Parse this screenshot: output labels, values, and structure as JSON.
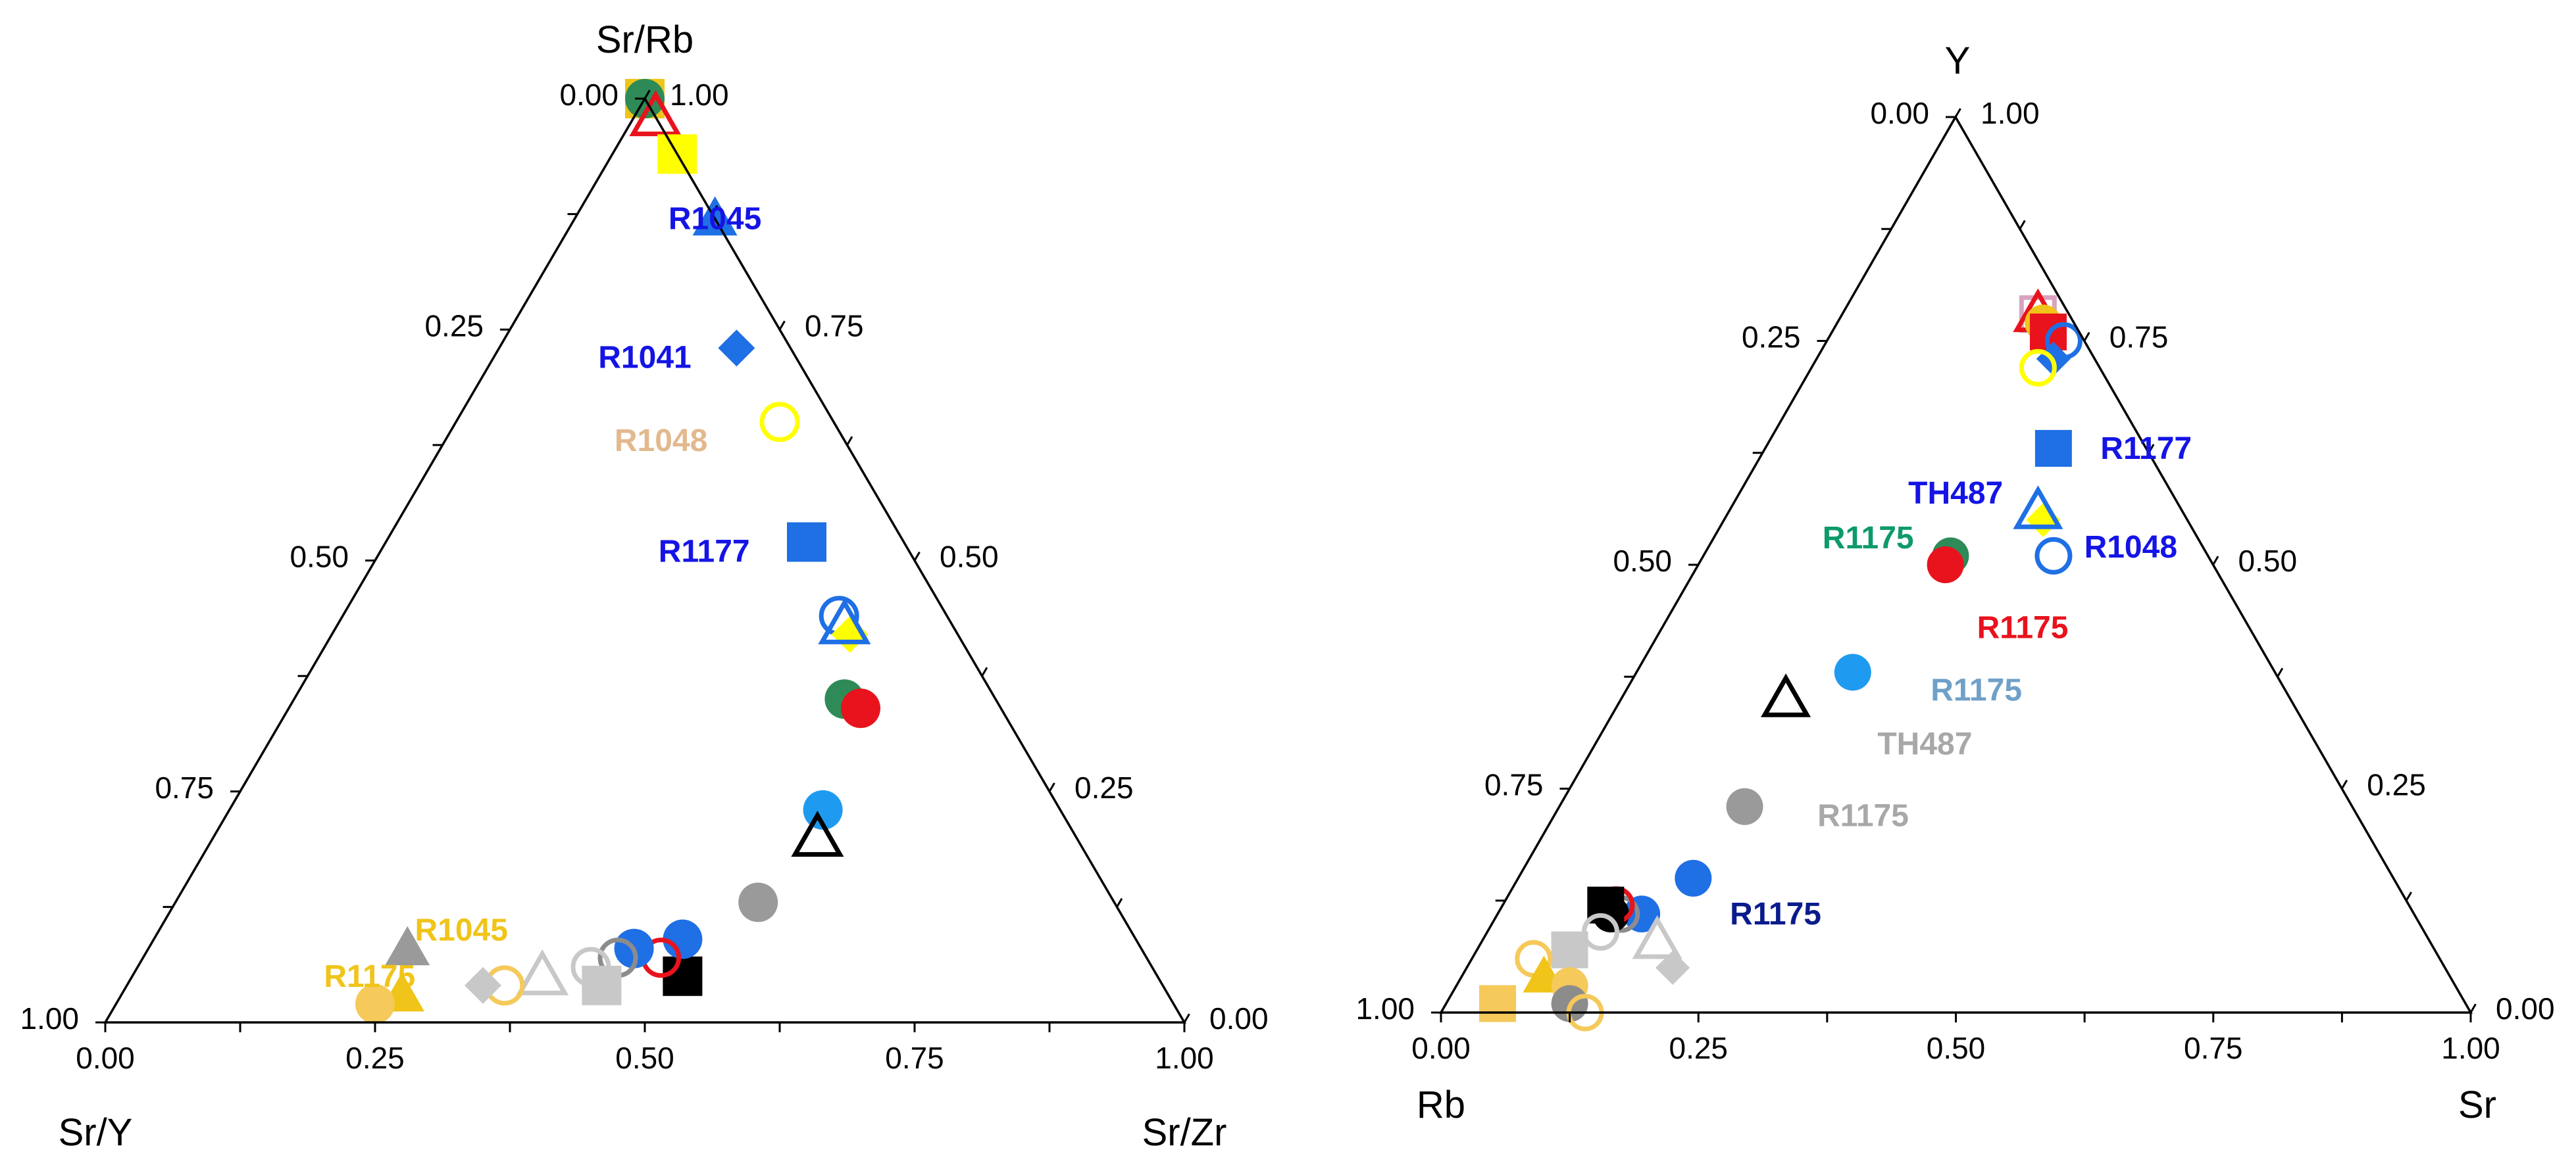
{
  "chart_data": [
    {
      "type": "ternary",
      "vertex_labels": {
        "top": "Sr/Rb",
        "left": "Sr/Y",
        "right": "Sr/Zr"
      },
      "tick_labels": {
        "bottom": [
          "0.00",
          "0.25",
          "0.50",
          "0.75",
          "1.00"
        ],
        "left": [
          "1.00",
          "0.75",
          "0.50",
          "0.25",
          "0.00"
        ],
        "right": [
          "0.00",
          "0.25",
          "0.50",
          "0.75",
          "1.00"
        ]
      },
      "points": [
        {
          "a": 1.0,
          "b": 0.0,
          "shape": "square",
          "color": "#F0C419",
          "filled": true
        },
        {
          "a": 1.0,
          "b": 0.0,
          "shape": "circle",
          "color": "#2E8B57",
          "filled": true
        },
        {
          "a": 0.98,
          "b": 0.0,
          "shape": "triangle",
          "color": "#E8131D",
          "filled": false
        },
        {
          "a": 0.94,
          "b": 0.0,
          "shape": "square",
          "color": "#FFFF00",
          "filled": true
        },
        {
          "a": 0.87,
          "b": 0.0,
          "shape": "triangle",
          "color": "#1F6FE5",
          "filled": true
        },
        {
          "a": 0.73,
          "b": 0.05,
          "shape": "diamond",
          "color": "#1F6FE5",
          "filled": true
        },
        {
          "a": 0.65,
          "b": 0.05,
          "shape": "circle",
          "color": "#FFFF00",
          "filled": false
        },
        {
          "a": 0.52,
          "b": 0.09,
          "shape": "square",
          "color": "#1F6FE5",
          "filled": true
        },
        {
          "a": 0.44,
          "b": 0.1,
          "shape": "circle",
          "color": "#1F6FE5",
          "filled": false
        },
        {
          "a": 0.42,
          "b": 0.1,
          "shape": "diamond",
          "color": "#FFFF00",
          "filled": true
        },
        {
          "a": 0.43,
          "b": 0.1,
          "shape": "triangle",
          "color": "#1F6FE5",
          "filled": false
        },
        {
          "a": 0.35,
          "b": 0.14,
          "shape": "circle",
          "color": "#2E8B57",
          "filled": true
        },
        {
          "a": 0.34,
          "b": 0.13,
          "shape": "circle",
          "color": "#E8131D",
          "filled": true
        },
        {
          "a": 0.23,
          "b": 0.22,
          "shape": "circle",
          "color": "#1E9BF0",
          "filled": true
        },
        {
          "a": 0.2,
          "b": 0.24,
          "shape": "triangle",
          "color": "#000000",
          "filled": false
        },
        {
          "a": 0.13,
          "b": 0.33,
          "shape": "circle",
          "color": "#9A9A9A",
          "filled": true
        },
        {
          "a": 0.05,
          "b": 0.44,
          "shape": "square",
          "color": "#000000",
          "filled": true
        },
        {
          "a": 0.09,
          "b": 0.42,
          "shape": "circle",
          "color": "#1F6FE5",
          "filled": true
        },
        {
          "a": 0.07,
          "b": 0.45,
          "shape": "circle",
          "color": "#E8131D",
          "filled": false
        },
        {
          "a": 0.08,
          "b": 0.47,
          "shape": "circle",
          "color": "#1F6FE5",
          "filled": true
        },
        {
          "a": 0.07,
          "b": 0.49,
          "shape": "circle",
          "color": "#8C8C8C",
          "filled": false
        },
        {
          "a": 0.06,
          "b": 0.52,
          "shape": "circle",
          "color": "#C8C8C8",
          "filled": false
        },
        {
          "a": 0.04,
          "b": 0.52,
          "shape": "square",
          "color": "#C8C8C8",
          "filled": true
        },
        {
          "a": 0.05,
          "b": 0.57,
          "shape": "triangle",
          "color": "#C8C8C8",
          "filled": false
        },
        {
          "a": 0.04,
          "b": 0.61,
          "shape": "circle",
          "color": "#F5C95A",
          "filled": false
        },
        {
          "a": 0.04,
          "b": 0.63,
          "shape": "diamond",
          "color": "#C8C8C8",
          "filled": true
        },
        {
          "a": 0.08,
          "b": 0.68,
          "shape": "triangle",
          "color": "#9A9A9A",
          "filled": true
        },
        {
          "a": 0.03,
          "b": 0.71,
          "shape": "triangle",
          "color": "#F0C419",
          "filled": true
        },
        {
          "a": 0.02,
          "b": 0.74,
          "shape": "circle",
          "color": "#F5C95A",
          "filled": true
        }
      ],
      "labels": [
        {
          "text": "R1045",
          "color": "#1414E6",
          "a": 0.87,
          "b": 0.0
        },
        {
          "text": "R1041",
          "color": "#1414E6",
          "a": 0.72,
          "b": 0.14
        },
        {
          "text": "R1048",
          "color": "#E2B98E",
          "a": 0.63,
          "b": 0.17
        },
        {
          "text": "R1177",
          "color": "#1414E6",
          "a": 0.51,
          "b": 0.19
        },
        {
          "text": "R1045",
          "color": "#F0C419",
          "a": 0.1,
          "b": 0.62
        },
        {
          "text": "R1175",
          "color": "#F0C419",
          "a": 0.05,
          "b": 0.73
        }
      ]
    },
    {
      "type": "ternary",
      "vertex_labels": {
        "top": "Y",
        "left": "Rb",
        "right": "Sr"
      },
      "tick_labels": {
        "bottom": [
          "0.00",
          "0.25",
          "0.50",
          "0.75",
          "1.00"
        ],
        "left": [
          "1.00",
          "0.75",
          "0.50",
          "0.25",
          "0.00"
        ],
        "right": [
          "0.00",
          "0.25",
          "0.50",
          "0.75",
          "1.00"
        ]
      },
      "points": [
        {
          "a": 0.78,
          "b": 0.03,
          "shape": "square",
          "color": "#D9A3C0",
          "filled": false
        },
        {
          "a": 0.78,
          "b": 0.03,
          "shape": "triangle",
          "color": "#E8131D",
          "filled": false
        },
        {
          "a": 0.77,
          "b": 0.03,
          "shape": "circle",
          "color": "#F0C419",
          "filled": true
        },
        {
          "a": 0.76,
          "b": 0.03,
          "shape": "square",
          "color": "#E8131D",
          "filled": true
        },
        {
          "a": 0.75,
          "b": 0.02,
          "shape": "circle",
          "color": "#1F6FE5",
          "filled": false
        },
        {
          "a": 0.73,
          "b": 0.04,
          "shape": "diamond",
          "color": "#1F6FE5",
          "filled": true
        },
        {
          "a": 0.72,
          "b": 0.06,
          "shape": "circle",
          "color": "#FFFF00",
          "filled": false
        },
        {
          "a": 0.63,
          "b": 0.09,
          "shape": "square",
          "color": "#1F6FE5",
          "filled": true
        },
        {
          "a": 0.55,
          "b": 0.14,
          "shape": "diamond",
          "color": "#FFFF00",
          "filled": true
        },
        {
          "a": 0.56,
          "b": 0.14,
          "shape": "triangle",
          "color": "#1F6FE5",
          "filled": false
        },
        {
          "a": 0.51,
          "b": 0.15,
          "shape": "circle",
          "color": "#1F6FE5",
          "filled": false
        },
        {
          "a": 0.51,
          "b": 0.25,
          "shape": "circle",
          "color": "#2E8B57",
          "filled": true
        },
        {
          "a": 0.5,
          "b": 0.26,
          "shape": "circle",
          "color": "#E8131D",
          "filled": true
        },
        {
          "a": 0.38,
          "b": 0.41,
          "shape": "circle",
          "color": "#1E9BF0",
          "filled": true
        },
        {
          "a": 0.35,
          "b": 0.49,
          "shape": "triangle",
          "color": "#000000",
          "filled": false
        },
        {
          "a": 0.23,
          "b": 0.59,
          "shape": "circle",
          "color": "#9A9A9A",
          "filled": true
        },
        {
          "a": 0.15,
          "b": 0.68,
          "shape": "circle",
          "color": "#1F6FE5",
          "filled": true
        },
        {
          "a": 0.11,
          "b": 0.75,
          "shape": "circle",
          "color": "#1F6FE5",
          "filled": true
        },
        {
          "a": 0.11,
          "b": 0.77,
          "shape": "circle",
          "color": "#8C8C8C",
          "filled": false
        },
        {
          "a": 0.11,
          "b": 0.78,
          "shape": "circle",
          "color": "#000000",
          "filled": true
        },
        {
          "a": 0.12,
          "b": 0.77,
          "shape": "circle",
          "color": "#E8131D",
          "filled": false
        },
        {
          "a": 0.12,
          "b": 0.78,
          "shape": "square",
          "color": "#000000",
          "filled": true
        },
        {
          "a": 0.09,
          "b": 0.8,
          "shape": "circle",
          "color": "#C8C8C8",
          "filled": false
        },
        {
          "a": 0.08,
          "b": 0.75,
          "shape": "triangle",
          "color": "#C8C8C8",
          "filled": false
        },
        {
          "a": 0.05,
          "b": 0.75,
          "shape": "diamond",
          "color": "#C8C8C8",
          "filled": true
        },
        {
          "a": 0.07,
          "b": 0.84,
          "shape": "square",
          "color": "#C8C8C8",
          "filled": true
        },
        {
          "a": 0.06,
          "b": 0.88,
          "shape": "circle",
          "color": "#F5C95A",
          "filled": false
        },
        {
          "a": 0.04,
          "b": 0.88,
          "shape": "triangle",
          "color": "#F0C419",
          "filled": true
        },
        {
          "a": 0.03,
          "b": 0.86,
          "shape": "circle",
          "color": "#F5C95A",
          "filled": true
        },
        {
          "a": 0.01,
          "b": 0.87,
          "shape": "circle",
          "color": "#8C8C8C",
          "filled": true
        },
        {
          "a": 0.0,
          "b": 0.86,
          "shape": "circle",
          "color": "#F5C95A",
          "filled": false
        },
        {
          "a": 0.01,
          "b": 0.94,
          "shape": "square",
          "color": "#F5C95A",
          "filled": true
        }
      ],
      "labels": [
        {
          "text": "R1177",
          "color": "#1414E6",
          "a": 0.63,
          "b": 0.0
        },
        {
          "text": "TH487",
          "color": "#1414E6",
          "a": 0.58,
          "b": 0.21
        },
        {
          "text": "R1175",
          "color": "#0E9A6A",
          "a": 0.53,
          "b": 0.32
        },
        {
          "text": "R1048",
          "color": "#1414E6",
          "a": 0.52,
          "b": 0.07
        },
        {
          "text": "R1175",
          "color": "#E8131D",
          "a": 0.43,
          "b": 0.22
        },
        {
          "text": "R1175",
          "color": "#6FA0C8",
          "a": 0.36,
          "b": 0.3
        },
        {
          "text": "TH487",
          "color": "#A8A8A8",
          "a": 0.3,
          "b": 0.38
        },
        {
          "text": "R1175",
          "color": "#A8A8A8",
          "a": 0.22,
          "b": 0.48
        },
        {
          "text": "R1175",
          "color": "#0B1B8C",
          "a": 0.11,
          "b": 0.62
        }
      ]
    }
  ]
}
